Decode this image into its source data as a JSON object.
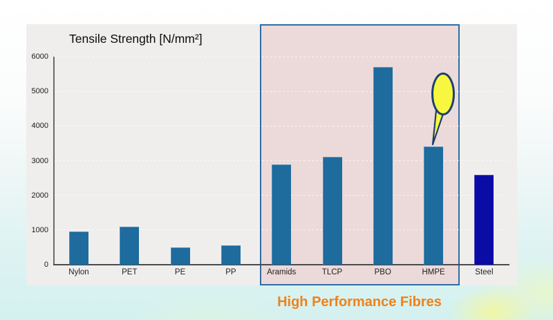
{
  "chart_data": {
    "type": "bar",
    "title": "Tensile Strength [N/mm²]",
    "categories": [
      "Nylon",
      "PET",
      "PE",
      "PP",
      "Aramids",
      "TLCP",
      "PBO",
      "HMPE",
      "Steel"
    ],
    "values": [
      950,
      1100,
      500,
      550,
      2900,
      3100,
      5700,
      3400,
      2600
    ],
    "bar_colors": [
      "#1e6b9d",
      "#1e6b9d",
      "#1e6b9d",
      "#1e6b9d",
      "#1e6b9d",
      "#1e6b9d",
      "#1e6b9d",
      "#1e6b9d",
      "#0b0ba6"
    ],
    "ylim": [
      0,
      6000
    ],
    "yticks": [
      0,
      1000,
      2000,
      3000,
      4000,
      5000,
      6000
    ],
    "grid": "horizontal dashed white lines at each 1000",
    "legend": "none",
    "highlight": {
      "label": "High Performance Fibres",
      "categories": [
        "Aramids",
        "TLCP",
        "PBO",
        "HMPE"
      ],
      "fill": "#ecd9d9",
      "border": "#2e6da4",
      "label_color": "#f0811a"
    },
    "annotation": {
      "shape": "empty speech balloon pointing at HMPE bar",
      "target": "HMPE",
      "fill": "#f7f73f",
      "stroke": "#1d3f6e"
    }
  }
}
